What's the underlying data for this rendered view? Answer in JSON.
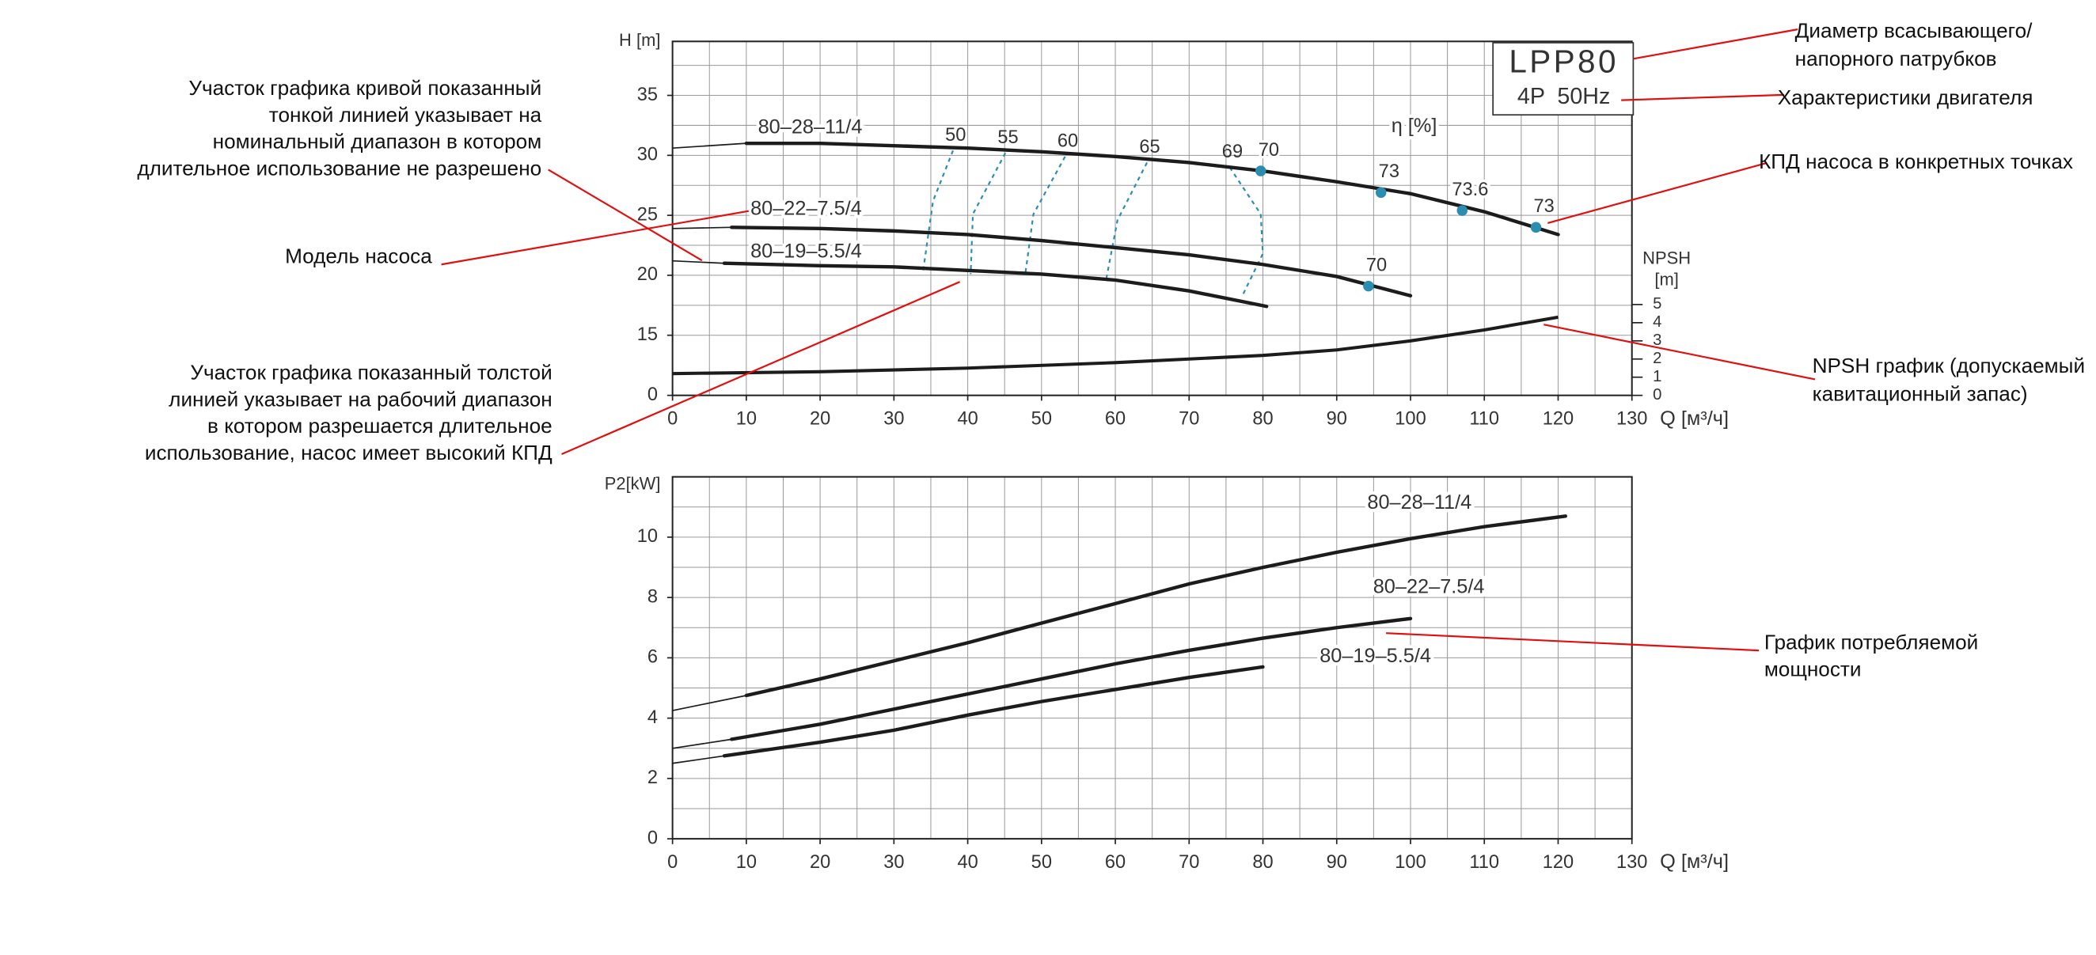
{
  "chart_data": [
    {
      "type": "line",
      "y_label": "H [m]",
      "x_label": "Q [м³/ч]",
      "y2_label": [
        "NPSH",
        "[m]"
      ],
      "xlim": [
        0,
        130
      ],
      "xticks": [
        0,
        10,
        20,
        30,
        40,
        50,
        60,
        70,
        80,
        90,
        100,
        110,
        120,
        130
      ],
      "xgrid": [
        0,
        5,
        10,
        15,
        20,
        25,
        30,
        35,
        40,
        45,
        50,
        55,
        60,
        65,
        70,
        75,
        80,
        85,
        90,
        95,
        100,
        105,
        110,
        115,
        120,
        125,
        130
      ],
      "ylim": [
        0,
        39.5
      ],
      "y_break": 15,
      "yticks": [
        0,
        15,
        20,
        25,
        30,
        35
      ],
      "ygrid": [
        0,
        15,
        17.5,
        20,
        22.5,
        25,
        27.5,
        30,
        32.5,
        35,
        37.5
      ],
      "y2lim": [
        0,
        5
      ],
      "y2ticks": [
        0,
        1,
        2,
        3,
        4,
        5
      ],
      "grid": true,
      "line_color": "#1c1c1c",
      "label_color": "#2b8db0",
      "series": [
        {
          "name": "80–28–11/4",
          "segments": [
            {
              "style": "thin",
              "x": [
                0,
                10
              ],
              "values": [
                30.6,
                31.0
              ]
            },
            {
              "style": "thick",
              "x": [
                10,
                20,
                30,
                40,
                50,
                60,
                70,
                80,
                90,
                100,
                110,
                120
              ],
              "values": [
                31.0,
                31.0,
                30.8,
                30.6,
                30.3,
                29.9,
                29.4,
                28.7,
                27.8,
                26.8,
                25.3,
                23.4
              ]
            }
          ]
        },
        {
          "name": "80–22–7.5/4",
          "segments": [
            {
              "style": "thin",
              "x": [
                0,
                8
              ],
              "values": [
                23.9,
                24.0
              ]
            },
            {
              "style": "thick",
              "x": [
                8,
                20,
                30,
                40,
                50,
                60,
                70,
                80,
                90,
                100
              ],
              "values": [
                24.0,
                23.9,
                23.7,
                23.4,
                22.9,
                22.3,
                21.7,
                20.9,
                19.9,
                18.3
              ]
            }
          ]
        },
        {
          "name": "80–19–5.5/4",
          "segments": [
            {
              "style": "thin",
              "x": [
                0,
                7
              ],
              "values": [
                21.2,
                21.0
              ]
            },
            {
              "style": "thick",
              "x": [
                7,
                20,
                30,
                40,
                50,
                60,
                70,
                80.5
              ],
              "values": [
                21.0,
                20.8,
                20.7,
                20.4,
                20.1,
                19.6,
                18.7,
                17.4
              ]
            }
          ]
        }
      ],
      "npsh_curve": {
        "axis": "y2",
        "x": [
          0,
          20,
          40,
          60,
          80,
          90,
          100,
          110,
          120
        ],
        "values": [
          1.2,
          1.3,
          1.5,
          1.8,
          2.2,
          2.5,
          3.0,
          3.6,
          4.3
        ]
      },
      "efficiency_label": "η [%]",
      "efficiency_contours": [
        {
          "name": 50,
          "x": [
            38.0,
            35.3,
            33.9
          ],
          "values": [
            30.4,
            26.2,
            20.1
          ]
        },
        {
          "name": 55,
          "x": [
            45.1,
            40.7,
            40.4
          ],
          "values": [
            30.2,
            25.1,
            20.1
          ]
        },
        {
          "name": 60,
          "x": [
            53.2,
            48.9,
            47.8
          ],
          "values": [
            29.9,
            25.1,
            20.1
          ]
        },
        {
          "name": 65,
          "x": [
            64.3,
            60.3,
            58.8
          ],
          "values": [
            29.4,
            24.6,
            19.8
          ]
        },
        {
          "name": 69,
          "x": [
            75.5,
            79.7,
            80.0,
            77.3
          ],
          "values": [
            29.0,
            25.1,
            21.8,
            18.4
          ]
        }
      ],
      "efficiency_points": {
        "x": [
          79.7,
          96,
          107,
          117,
          94.3
        ],
        "values": [
          28.7,
          26.9,
          25.4,
          24.0,
          19.1
        ],
        "labels": [
          70,
          73,
          73.6,
          73,
          70
        ]
      }
    },
    {
      "type": "line",
      "y_label": "P2[kW]",
      "x_label": "Q [м³/ч]",
      "xlim": [
        0,
        130
      ],
      "xticks": [
        0,
        10,
        20,
        30,
        40,
        50,
        60,
        70,
        80,
        90,
        100,
        110,
        120,
        130
      ],
      "xgrid": [
        0,
        5,
        10,
        15,
        20,
        25,
        30,
        35,
        40,
        45,
        50,
        55,
        60,
        65,
        70,
        75,
        80,
        85,
        90,
        95,
        100,
        105,
        110,
        115,
        120,
        125,
        130
      ],
      "ylim": [
        0,
        12
      ],
      "yticks": [
        0,
        2,
        4,
        6,
        8,
        10
      ],
      "ygrid": [
        0,
        1,
        2,
        3,
        4,
        5,
        6,
        7,
        8,
        9,
        10,
        11,
        12
      ],
      "grid": true,
      "line_color": "#1c1c1c",
      "label_color": "#2b8db0",
      "series": [
        {
          "name": "80–28–11/4",
          "segments": [
            {
              "style": "thin",
              "x": [
                0,
                10
              ],
              "values": [
                4.25,
                4.75
              ]
            },
            {
              "style": "thick",
              "x": [
                10,
                20,
                30,
                40,
                50,
                60,
                70,
                80,
                90,
                100,
                110,
                121
              ],
              "values": [
                4.75,
                5.3,
                5.9,
                6.5,
                7.15,
                7.8,
                8.45,
                9.0,
                9.5,
                9.95,
                10.35,
                10.7
              ]
            }
          ]
        },
        {
          "name": "80–22–7.5/4",
          "segments": [
            {
              "style": "thin",
              "x": [
                0,
                8
              ],
              "values": [
                3.0,
                3.3
              ]
            },
            {
              "style": "thick",
              "x": [
                8,
                20,
                30,
                40,
                50,
                60,
                70,
                80,
                90,
                100
              ],
              "values": [
                3.3,
                3.8,
                4.3,
                4.8,
                5.3,
                5.8,
                6.25,
                6.65,
                7.0,
                7.3
              ]
            }
          ]
        },
        {
          "name": "80–19–5.5/4",
          "segments": [
            {
              "style": "thin",
              "x": [
                0,
                7
              ],
              "values": [
                2.5,
                2.75
              ]
            },
            {
              "style": "thick",
              "x": [
                7,
                20,
                30,
                40,
                50,
                60,
                70,
                80
              ],
              "values": [
                2.75,
                3.2,
                3.6,
                4.1,
                4.55,
                4.95,
                5.35,
                5.7
              ]
            }
          ]
        }
      ]
    }
  ],
  "model_box": {
    "title": "LPP80",
    "subtitle": "4P  50Hz"
  },
  "annotations": [
    {
      "lines": [
        "Диаметр всасывающего/",
        "напорного патрубков"
      ]
    },
    {
      "lines": [
        "Характеристики двигателя"
      ]
    },
    {
      "lines": [
        "КПД насоса в конкретных точках"
      ]
    },
    {
      "lines": [
        "NPSH график (допускаемый",
        "кавитационный запас)"
      ]
    },
    {
      "lines": [
        "График потребляемой",
        "мощности"
      ]
    },
    {
      "lines": [
        "Участок графика кривой показанный",
        "тонкой линией указывает на",
        "номинальный диапазон в котором",
        "длительное использование не разрешено"
      ]
    },
    {
      "lines": [
        "Модель насоса"
      ]
    },
    {
      "lines": [
        "Участок графика показанный толстой",
        "линией указывает на рабочий диапазон",
        "в котором разрешается длительное",
        "использование, насос имеет высокий КПД"
      ]
    }
  ]
}
